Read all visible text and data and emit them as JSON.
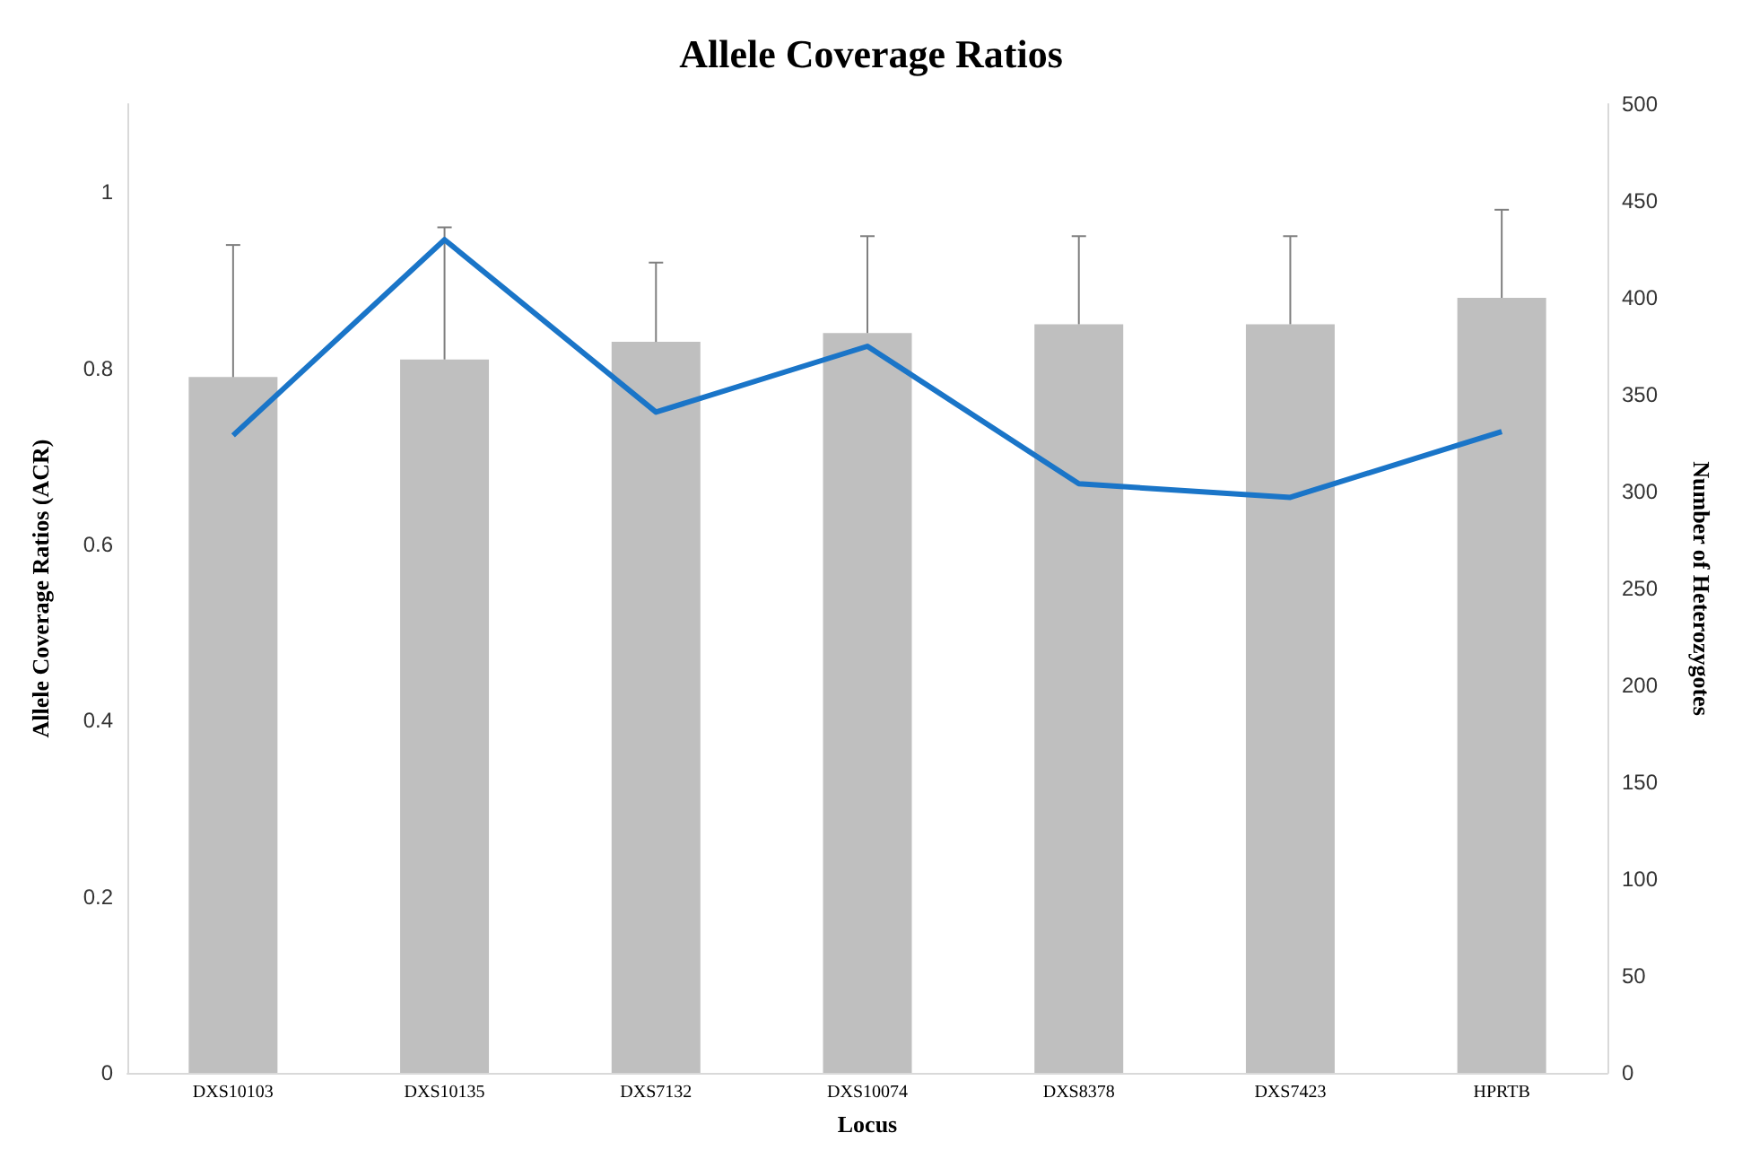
{
  "chart_data": {
    "type": "bar",
    "title": "Allele Coverage Ratios",
    "xlabel": "Locus",
    "ylabel": "Allele Coverage Ratios (ACR)",
    "y2label": "Number of Heterozygotes",
    "categories": [
      "DXS10103",
      "DXS10135",
      "DXS7132",
      "DXS10074",
      "DXS8378",
      "DXS7423",
      "HPRTB"
    ],
    "series": [
      {
        "color": "#bfbfbf",
        "values": [
          0.79,
          0.81,
          0.83,
          0.84,
          0.85,
          0.85,
          0.88
        ],
        "errors": [
          [
            0.79,
            0.94
          ],
          [
            0.81,
            0.96
          ],
          [
            0.83,
            0.92
          ],
          [
            0.84,
            0.95
          ],
          [
            0.85,
            0.95
          ],
          [
            0.85,
            0.95
          ],
          [
            0.88,
            0.98
          ]
        ]
      },
      {
        "type": "line",
        "axis": "y2",
        "color": "#1a75c8",
        "values": [
          329,
          430,
          341,
          375,
          304,
          297,
          331
        ]
      }
    ],
    "ylim": [
      0,
      1.1
    ],
    "yticks": [
      0,
      0.2,
      0.4,
      0.6,
      0.8,
      1
    ],
    "y2lim": [
      0,
      500
    ],
    "y2ticks": [
      0,
      50,
      100,
      150,
      200,
      250,
      300,
      350,
      400,
      450,
      500
    ],
    "grid": false
  }
}
